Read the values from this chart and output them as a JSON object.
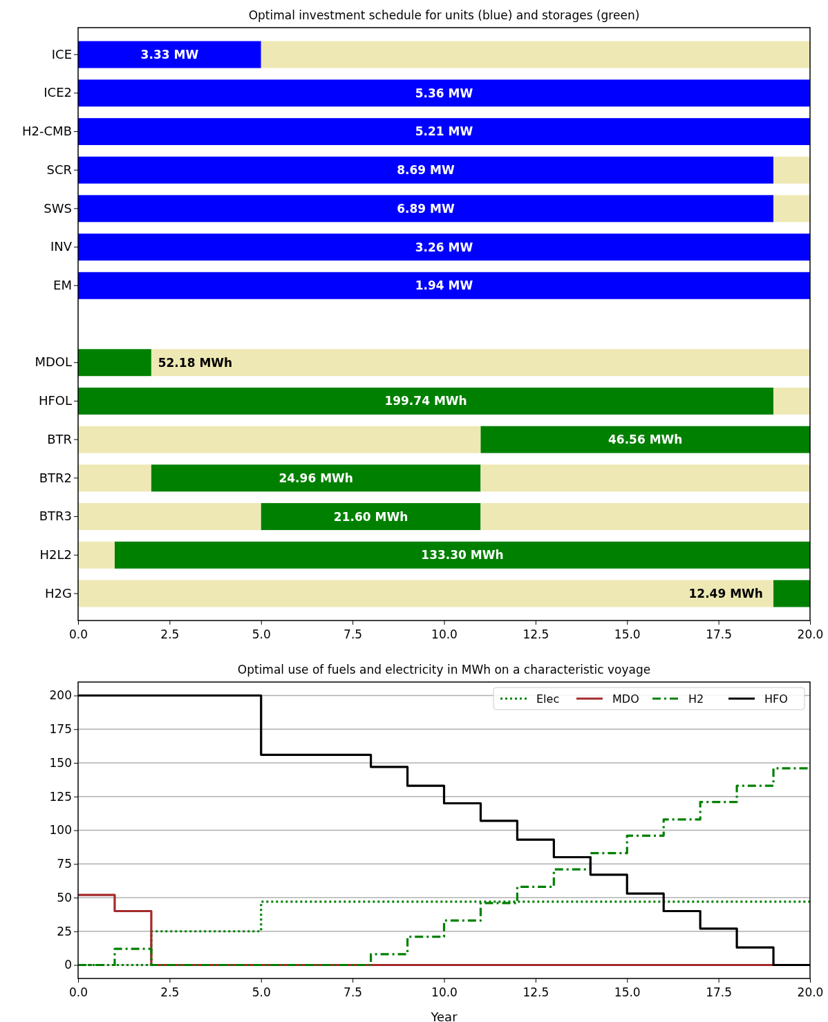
{
  "chart_data": [
    {
      "type": "bar",
      "title": "Optimal investment schedule for units (blue) and storages (green)",
      "orientation": "horizontal",
      "categories": [
        "ICE",
        "ICE2",
        "H2-CMB",
        "SCR",
        "SWS",
        "INV",
        "EM",
        null,
        "MDOL",
        "HFOL",
        "BTR",
        "BTR2",
        "BTR3",
        "H2L2",
        "H2G"
      ],
      "stacked": true,
      "series": [
        {
          "color": "#eee8b4",
          "values": [
            0,
            0,
            0,
            0,
            0,
            0,
            0,
            null,
            0,
            0,
            11,
            2,
            5,
            1,
            19
          ]
        },
        {
          "colors": [
            "#0000ff",
            "#0000ff",
            "#0000ff",
            "#0000ff",
            "#0000ff",
            "#0000ff",
            "#0000ff",
            null,
            "#008000",
            "#008000",
            "#008000",
            "#008000",
            "#008000",
            "#008000",
            "#008000"
          ],
          "values": [
            5,
            20,
            20,
            19,
            19,
            20,
            20,
            null,
            2,
            19,
            9,
            9,
            6,
            19,
            1
          ]
        },
        {
          "color": "#eee8b4",
          "values": [
            15,
            0,
            0,
            1,
            1,
            0,
            0,
            null,
            18,
            1,
            0,
            9,
            9,
            0,
            0
          ]
        }
      ],
      "annotations": [
        {
          "text": "3.33 MW",
          "x": 2.5,
          "y": "ICE"
        },
        {
          "text": "5.36 MW",
          "x": 10,
          "y": "ICE2"
        },
        {
          "text": "5.21 MW",
          "x": 10,
          "y": "H2-CMB"
        },
        {
          "text": "8.69 MW",
          "x": 9.5,
          "y": "SCR"
        },
        {
          "text": "6.89 MW",
          "x": 9.5,
          "y": "SWS"
        },
        {
          "text": "3.26 MW",
          "x": 10,
          "y": "INV"
        },
        {
          "text": "1.94 MW",
          "x": 10,
          "y": "EM"
        },
        {
          "text": "52.18 MWh",
          "x": 3.2,
          "y": "MDOL"
        },
        {
          "text": "199.74 MWh",
          "x": 9.5,
          "y": "HFOL"
        },
        {
          "text": "46.56 MWh",
          "x": 15.5,
          "y": "BTR"
        },
        {
          "text": "24.96 MWh",
          "x": 6.5,
          "y": "BTR2"
        },
        {
          "text": "21.60 MWh",
          "x": 8,
          "y": "BTR3"
        },
        {
          "text": "133.30 MWh",
          "x": 10.5,
          "y": "H2L2"
        },
        {
          "text": "12.49 MWh",
          "x": 17.7,
          "y": "H2G"
        }
      ],
      "xlim": [
        0,
        20
      ],
      "xticks": [
        {
          "value": 0,
          "label": "0.0"
        },
        {
          "value": 2.5,
          "label": "2.5"
        },
        {
          "value": 5,
          "label": "5.0"
        },
        {
          "value": 7.5,
          "label": "7.5"
        },
        {
          "value": 10,
          "label": "10.0"
        },
        {
          "value": 12.5,
          "label": "12.5"
        },
        {
          "value": 15,
          "label": "15.0"
        },
        {
          "value": 17.5,
          "label": "17.5"
        },
        {
          "value": 20,
          "label": "20.0"
        }
      ]
    },
    {
      "type": "step",
      "title": "Optimal use of fuels and electricity in MWh on a characteristic voyage",
      "xlabel": "Year",
      "x": [
        0,
        1,
        2,
        3,
        4,
        5,
        6,
        7,
        8,
        9,
        10,
        11,
        12,
        13,
        14,
        15,
        16,
        17,
        18,
        19,
        20
      ],
      "series": [
        {
          "name": "Elec",
          "color": "#008000",
          "line_style": "dotted",
          "values": [
            0,
            0,
            25,
            25,
            25,
            47,
            47,
            47,
            47,
            47,
            47,
            47,
            47,
            47,
            47,
            47,
            47,
            47,
            47,
            47,
            47
          ]
        },
        {
          "name": "MDO",
          "color": "#a52a2a",
          "line_style": "solid",
          "values": [
            52,
            40,
            0,
            0,
            0,
            0,
            0,
            0,
            0,
            0,
            0,
            0,
            0,
            0,
            0,
            0,
            0,
            0,
            0,
            0,
            0
          ]
        },
        {
          "name": "H2",
          "color": "#008000",
          "line_style": "dashdot",
          "values": [
            0,
            12,
            0,
            0,
            0,
            0,
            0,
            0,
            8,
            21,
            33,
            46,
            58,
            71,
            83,
            96,
            108,
            121,
            133,
            146,
            146
          ]
        },
        {
          "name": "HFO",
          "color": "#000000",
          "line_style": "solid",
          "values": [
            200,
            200,
            200,
            200,
            200,
            156,
            156,
            156,
            147,
            133,
            120,
            107,
            93,
            80,
            67,
            53,
            40,
            27,
            13,
            0,
            0
          ]
        }
      ],
      "xlim": [
        0,
        20
      ],
      "xticks": [
        {
          "value": 0,
          "label": "0.0"
        },
        {
          "value": 2.5,
          "label": "2.5"
        },
        {
          "value": 5,
          "label": "5.0"
        },
        {
          "value": 7.5,
          "label": "7.5"
        },
        {
          "value": 10,
          "label": "10.0"
        },
        {
          "value": 12.5,
          "label": "12.5"
        },
        {
          "value": 15,
          "label": "15.0"
        },
        {
          "value": 17.5,
          "label": "17.5"
        },
        {
          "value": 20,
          "label": "20.0"
        }
      ],
      "ylim": [
        -10,
        210
      ],
      "yticks": [
        0,
        25,
        50,
        75,
        100,
        125,
        150,
        175,
        200
      ],
      "grid": "y",
      "legend": "top right"
    }
  ]
}
